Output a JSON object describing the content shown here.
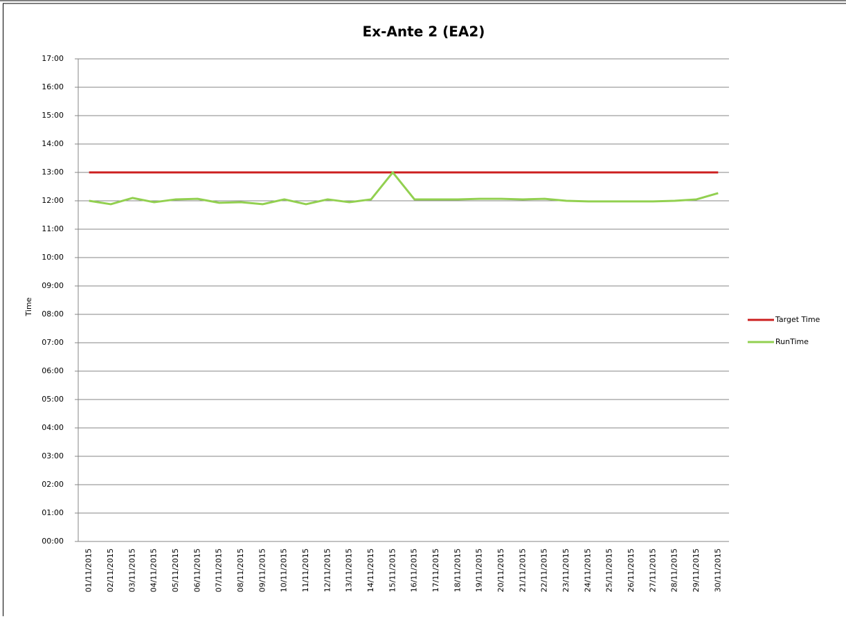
{
  "chart_data": {
    "type": "line",
    "title": "Ex-Ante 2 (EA2)",
    "y_label": "Time",
    "categories": [
      "01/11/2015",
      "02/11/2015",
      "03/11/2015",
      "04/11/2015",
      "05/11/2015",
      "06/11/2015",
      "07/11/2015",
      "08/11/2015",
      "09/11/2015",
      "10/11/2015",
      "11/11/2015",
      "12/11/2015",
      "13/11/2015",
      "14/11/2015",
      "15/11/2015",
      "16/11/2015",
      "17/11/2015",
      "18/11/2015",
      "19/11/2015",
      "20/11/2015",
      "21/11/2015",
      "22/11/2015",
      "23/11/2015",
      "24/11/2015",
      "25/11/2015",
      "26/11/2015",
      "27/11/2015",
      "28/11/2015",
      "29/11/2015",
      "30/11/2015"
    ],
    "series": [
      {
        "name": "Target Time",
        "color": "#cc1f1f",
        "values": [
          13,
          13,
          13,
          13,
          13,
          13,
          13,
          13,
          13,
          13,
          13,
          13,
          13,
          13,
          13,
          13,
          13,
          13,
          13,
          13,
          13,
          13,
          13,
          13,
          13,
          13,
          13,
          13,
          13,
          13
        ]
      },
      {
        "name": "RunTime",
        "color": "#92d050",
        "values": [
          12.0,
          11.88,
          12.1,
          11.95,
          12.05,
          12.07,
          11.93,
          11.95,
          11.88,
          12.05,
          11.88,
          12.05,
          11.95,
          12.05,
          13.0,
          12.05,
          12.05,
          12.05,
          12.07,
          12.07,
          12.05,
          12.07,
          12.0,
          11.98,
          11.98,
          11.98,
          11.98,
          12.0,
          12.05,
          12.27
        ]
      }
    ],
    "ylim": [
      0,
      17
    ],
    "yticks": [
      {
        "value": 0,
        "label": "00:00"
      },
      {
        "value": 1,
        "label": "01:00"
      },
      {
        "value": 2,
        "label": "02:00"
      },
      {
        "value": 3,
        "label": "03:00"
      },
      {
        "value": 4,
        "label": "04:00"
      },
      {
        "value": 5,
        "label": "05:00"
      },
      {
        "value": 6,
        "label": "06:00"
      },
      {
        "value": 7,
        "label": "07:00"
      },
      {
        "value": 8,
        "label": "08:00"
      },
      {
        "value": 9,
        "label": "09:00"
      },
      {
        "value": 10,
        "label": "10:00"
      },
      {
        "value": 11,
        "label": "11:00"
      },
      {
        "value": 12,
        "label": "12:00"
      },
      {
        "value": 13,
        "label": "13:00"
      },
      {
        "value": 14,
        "label": "14:00"
      },
      {
        "value": 15,
        "label": "15:00"
      },
      {
        "value": 16,
        "label": "16:00"
      },
      {
        "value": 17,
        "label": "17:00"
      }
    ],
    "grid": true,
    "legend": "right"
  }
}
